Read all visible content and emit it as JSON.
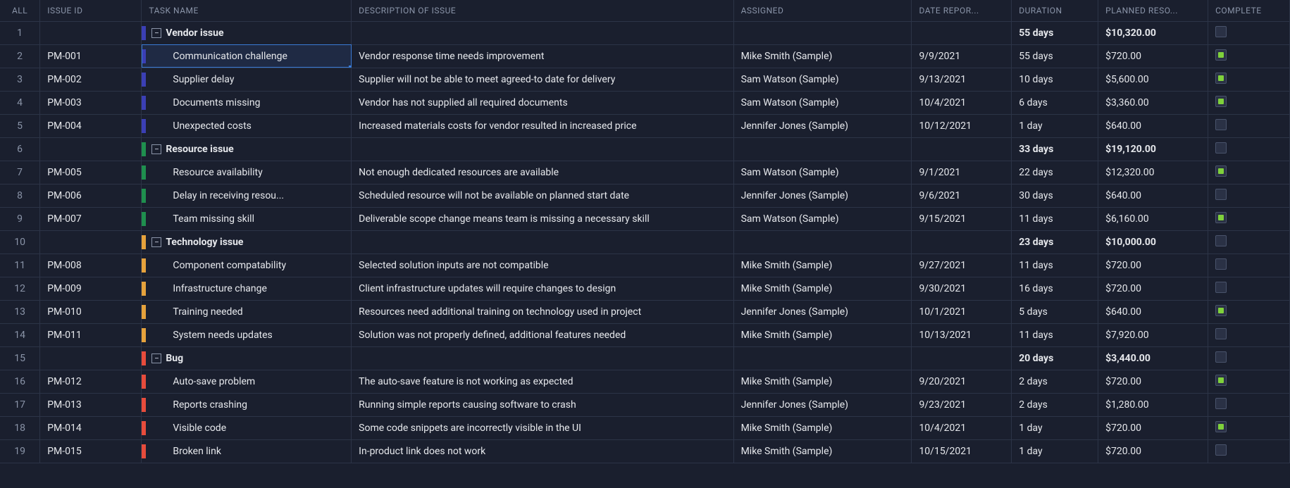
{
  "columns": {
    "all": "ALL",
    "issue_id": "ISSUE ID",
    "task_name": "TASK NAME",
    "description": "DESCRIPTION OF ISSUE",
    "assigned": "ASSIGNED",
    "date_reported": "DATE REPOR...",
    "duration": "DURATION",
    "planned": "PLANNED RESO...",
    "complete": "COMPLETE"
  },
  "colors": {
    "vendor": "#3b3fb5",
    "resource": "#1f8f4e",
    "technology": "#e6a23c",
    "bug": "#e74c3c"
  },
  "rows": [
    {
      "n": 1,
      "group": true,
      "color": "vendor",
      "task": "Vendor issue",
      "dur": "55 days",
      "plan": "$10,320.00",
      "complete": false,
      "id": "",
      "desc": "",
      "asg": "",
      "date": ""
    },
    {
      "n": 2,
      "group": false,
      "color": "vendor",
      "id": "PM-001",
      "task": "Communication challenge",
      "desc": "Vendor response time needs improvement",
      "asg": "Mike Smith (Sample)",
      "date": "9/9/2021",
      "dur": "55 days",
      "plan": "$720.00",
      "complete": true,
      "selected": true
    },
    {
      "n": 3,
      "group": false,
      "color": "vendor",
      "id": "PM-002",
      "task": "Supplier delay",
      "desc": "Supplier will not be able to meet agreed-to date for delivery",
      "asg": "Sam Watson (Sample)",
      "date": "9/13/2021",
      "dur": "10 days",
      "plan": "$5,600.00",
      "complete": true
    },
    {
      "n": 4,
      "group": false,
      "color": "vendor",
      "id": "PM-003",
      "task": "Documents missing",
      "desc": "Vendor has not supplied all required documents",
      "asg": "Sam Watson (Sample)",
      "date": "10/4/2021",
      "dur": "6 days",
      "plan": "$3,360.00",
      "complete": true
    },
    {
      "n": 5,
      "group": false,
      "color": "vendor",
      "id": "PM-004",
      "task": "Unexpected costs",
      "desc": "Increased materials costs for vendor resulted in increased price",
      "asg": "Jennifer Jones (Sample)",
      "date": "10/12/2021",
      "dur": "1 day",
      "plan": "$640.00",
      "complete": false
    },
    {
      "n": 6,
      "group": true,
      "color": "resource",
      "task": "Resource issue",
      "dur": "33 days",
      "plan": "$19,120.00",
      "complete": false,
      "id": "",
      "desc": "",
      "asg": "",
      "date": ""
    },
    {
      "n": 7,
      "group": false,
      "color": "resource",
      "id": "PM-005",
      "task": "Resource availability",
      "desc": "Not enough dedicated resources are available",
      "asg": "Sam Watson (Sample)",
      "date": "9/1/2021",
      "dur": "22 days",
      "plan": "$12,320.00",
      "complete": true
    },
    {
      "n": 8,
      "group": false,
      "color": "resource",
      "id": "PM-006",
      "task": "Delay in receiving resou...",
      "desc": "Scheduled resource will not be available on planned start date",
      "asg": "Jennifer Jones (Sample)",
      "date": "9/6/2021",
      "dur": "30 days",
      "plan": "$640.00",
      "complete": false
    },
    {
      "n": 9,
      "group": false,
      "color": "resource",
      "id": "PM-007",
      "task": "Team missing skill",
      "desc": "Deliverable scope change means team is missing a necessary skill",
      "asg": "Sam Watson (Sample)",
      "date": "9/15/2021",
      "dur": "11 days",
      "plan": "$6,160.00",
      "complete": true
    },
    {
      "n": 10,
      "group": true,
      "color": "technology",
      "task": "Technology issue",
      "dur": "23 days",
      "plan": "$10,000.00",
      "complete": false,
      "id": "",
      "desc": "",
      "asg": "",
      "date": ""
    },
    {
      "n": 11,
      "group": false,
      "color": "technology",
      "id": "PM-008",
      "task": "Component compatability",
      "desc": "Selected solution inputs are not compatible",
      "asg": "Mike Smith (Sample)",
      "date": "9/27/2021",
      "dur": "11 days",
      "plan": "$720.00",
      "complete": false
    },
    {
      "n": 12,
      "group": false,
      "color": "technology",
      "id": "PM-009",
      "task": "Infrastructure change",
      "desc": "Client infrastructure updates will require changes to design",
      "asg": "Mike Smith (Sample)",
      "date": "9/30/2021",
      "dur": "16 days",
      "plan": "$720.00",
      "complete": false
    },
    {
      "n": 13,
      "group": false,
      "color": "technology",
      "id": "PM-010",
      "task": "Training needed",
      "desc": "Resources need additional training on technology used in project",
      "asg": "Jennifer Jones (Sample)",
      "date": "10/1/2021",
      "dur": "5 days",
      "plan": "$640.00",
      "complete": true
    },
    {
      "n": 14,
      "group": false,
      "color": "technology",
      "id": "PM-011",
      "task": "System needs updates",
      "desc": "Solution was not properly defined, additional features needed",
      "asg": "Mike Smith (Sample)",
      "date": "10/13/2021",
      "dur": "11 days",
      "plan": "$7,920.00",
      "complete": false
    },
    {
      "n": 15,
      "group": true,
      "color": "bug",
      "task": "Bug",
      "dur": "20 days",
      "plan": "$3,440.00",
      "complete": false,
      "id": "",
      "desc": "",
      "asg": "",
      "date": ""
    },
    {
      "n": 16,
      "group": false,
      "color": "bug",
      "id": "PM-012",
      "task": "Auto-save problem",
      "desc": "The auto-save feature is not working as expected",
      "asg": "Mike Smith (Sample)",
      "date": "9/20/2021",
      "dur": "2 days",
      "plan": "$720.00",
      "complete": true
    },
    {
      "n": 17,
      "group": false,
      "color": "bug",
      "id": "PM-013",
      "task": "Reports crashing",
      "desc": "Running simple reports causing software to crash",
      "asg": "Jennifer Jones (Sample)",
      "date": "9/23/2021",
      "dur": "2 days",
      "plan": "$1,280.00",
      "complete": false
    },
    {
      "n": 18,
      "group": false,
      "color": "bug",
      "id": "PM-014",
      "task": "Visible code",
      "desc": "Some code snippets are incorrectly visible in the UI",
      "asg": "Mike Smith (Sample)",
      "date": "10/4/2021",
      "dur": "1 day",
      "plan": "$720.00",
      "complete": true
    },
    {
      "n": 19,
      "group": false,
      "color": "bug",
      "id": "PM-015",
      "task": "Broken link",
      "desc": "In-product link does not work",
      "asg": "Mike Smith (Sample)",
      "date": "10/15/2021",
      "dur": "1 day",
      "plan": "$720.00",
      "complete": false
    }
  ]
}
